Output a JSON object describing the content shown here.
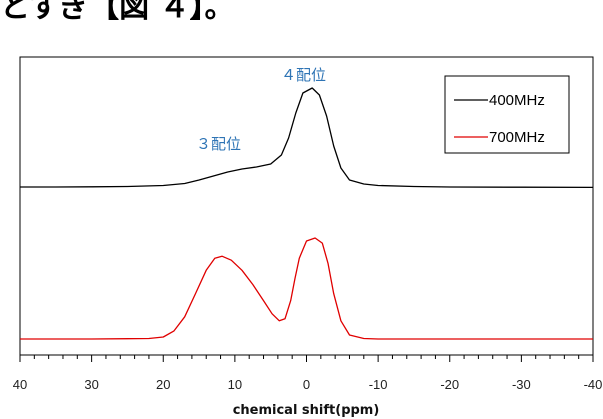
{
  "header_fragment": "とすぎ【図 ４】。",
  "chart_data": {
    "type": "line",
    "xlabel": "chemical shift(ppm)",
    "xlim": [
      40,
      -40
    ],
    "x_ticks": [
      40,
      30,
      20,
      10,
      0,
      -10,
      -20,
      -30,
      -40
    ],
    "x_reversed": true,
    "yaxis": "no numeric labels; spectra vertically offset",
    "legend_position": "top-right",
    "annotations": [
      {
        "text": "４配位",
        "x": -1.5
      },
      {
        "text": "３配位",
        "x": 11
      }
    ],
    "series": [
      {
        "name": "400MHz",
        "color": "#000000",
        "offset": 1.0,
        "points": [
          [
            40,
            0.01
          ],
          [
            35,
            0.01
          ],
          [
            30,
            0.012
          ],
          [
            25,
            0.015
          ],
          [
            20,
            0.025
          ],
          [
            17,
            0.045
          ],
          [
            15,
            0.08
          ],
          [
            13,
            0.12
          ],
          [
            11,
            0.16
          ],
          [
            9,
            0.19
          ],
          [
            7,
            0.21
          ],
          [
            5,
            0.24
          ],
          [
            3.5,
            0.33
          ],
          [
            2.5,
            0.5
          ],
          [
            1.5,
            0.75
          ],
          [
            0.5,
            0.95
          ],
          [
            -0.8,
            1.0
          ],
          [
            -1.8,
            0.93
          ],
          [
            -2.8,
            0.72
          ],
          [
            -3.8,
            0.42
          ],
          [
            -4.8,
            0.2
          ],
          [
            -6,
            0.08
          ],
          [
            -8,
            0.04
          ],
          [
            -10,
            0.025
          ],
          [
            -15,
            0.015
          ],
          [
            -20,
            0.01
          ],
          [
            -30,
            0.008
          ],
          [
            -40,
            0.006
          ]
        ]
      },
      {
        "name": "700MHz",
        "color": "#e00000",
        "offset": 0.0,
        "points": [
          [
            40,
            0.0
          ],
          [
            30,
            0.0
          ],
          [
            22,
            0.005
          ],
          [
            20,
            0.02
          ],
          [
            18.5,
            0.08
          ],
          [
            17,
            0.22
          ],
          [
            15.5,
            0.45
          ],
          [
            14,
            0.68
          ],
          [
            12.8,
            0.8
          ],
          [
            11.8,
            0.82
          ],
          [
            10.5,
            0.78
          ],
          [
            9,
            0.68
          ],
          [
            7.5,
            0.54
          ],
          [
            6,
            0.38
          ],
          [
            4.8,
            0.25
          ],
          [
            3.8,
            0.18
          ],
          [
            3,
            0.2
          ],
          [
            2.2,
            0.38
          ],
          [
            1.6,
            0.6
          ],
          [
            1,
            0.8
          ],
          [
            0,
            0.97
          ],
          [
            -1.2,
            1.0
          ],
          [
            -2.2,
            0.95
          ],
          [
            -3,
            0.75
          ],
          [
            -3.8,
            0.45
          ],
          [
            -4.8,
            0.18
          ],
          [
            -6,
            0.04
          ],
          [
            -8,
            0.005
          ],
          [
            -10,
            0.0
          ],
          [
            -20,
            0.0
          ],
          [
            -30,
            0.0
          ],
          [
            -40,
            0.0
          ]
        ]
      }
    ]
  }
}
